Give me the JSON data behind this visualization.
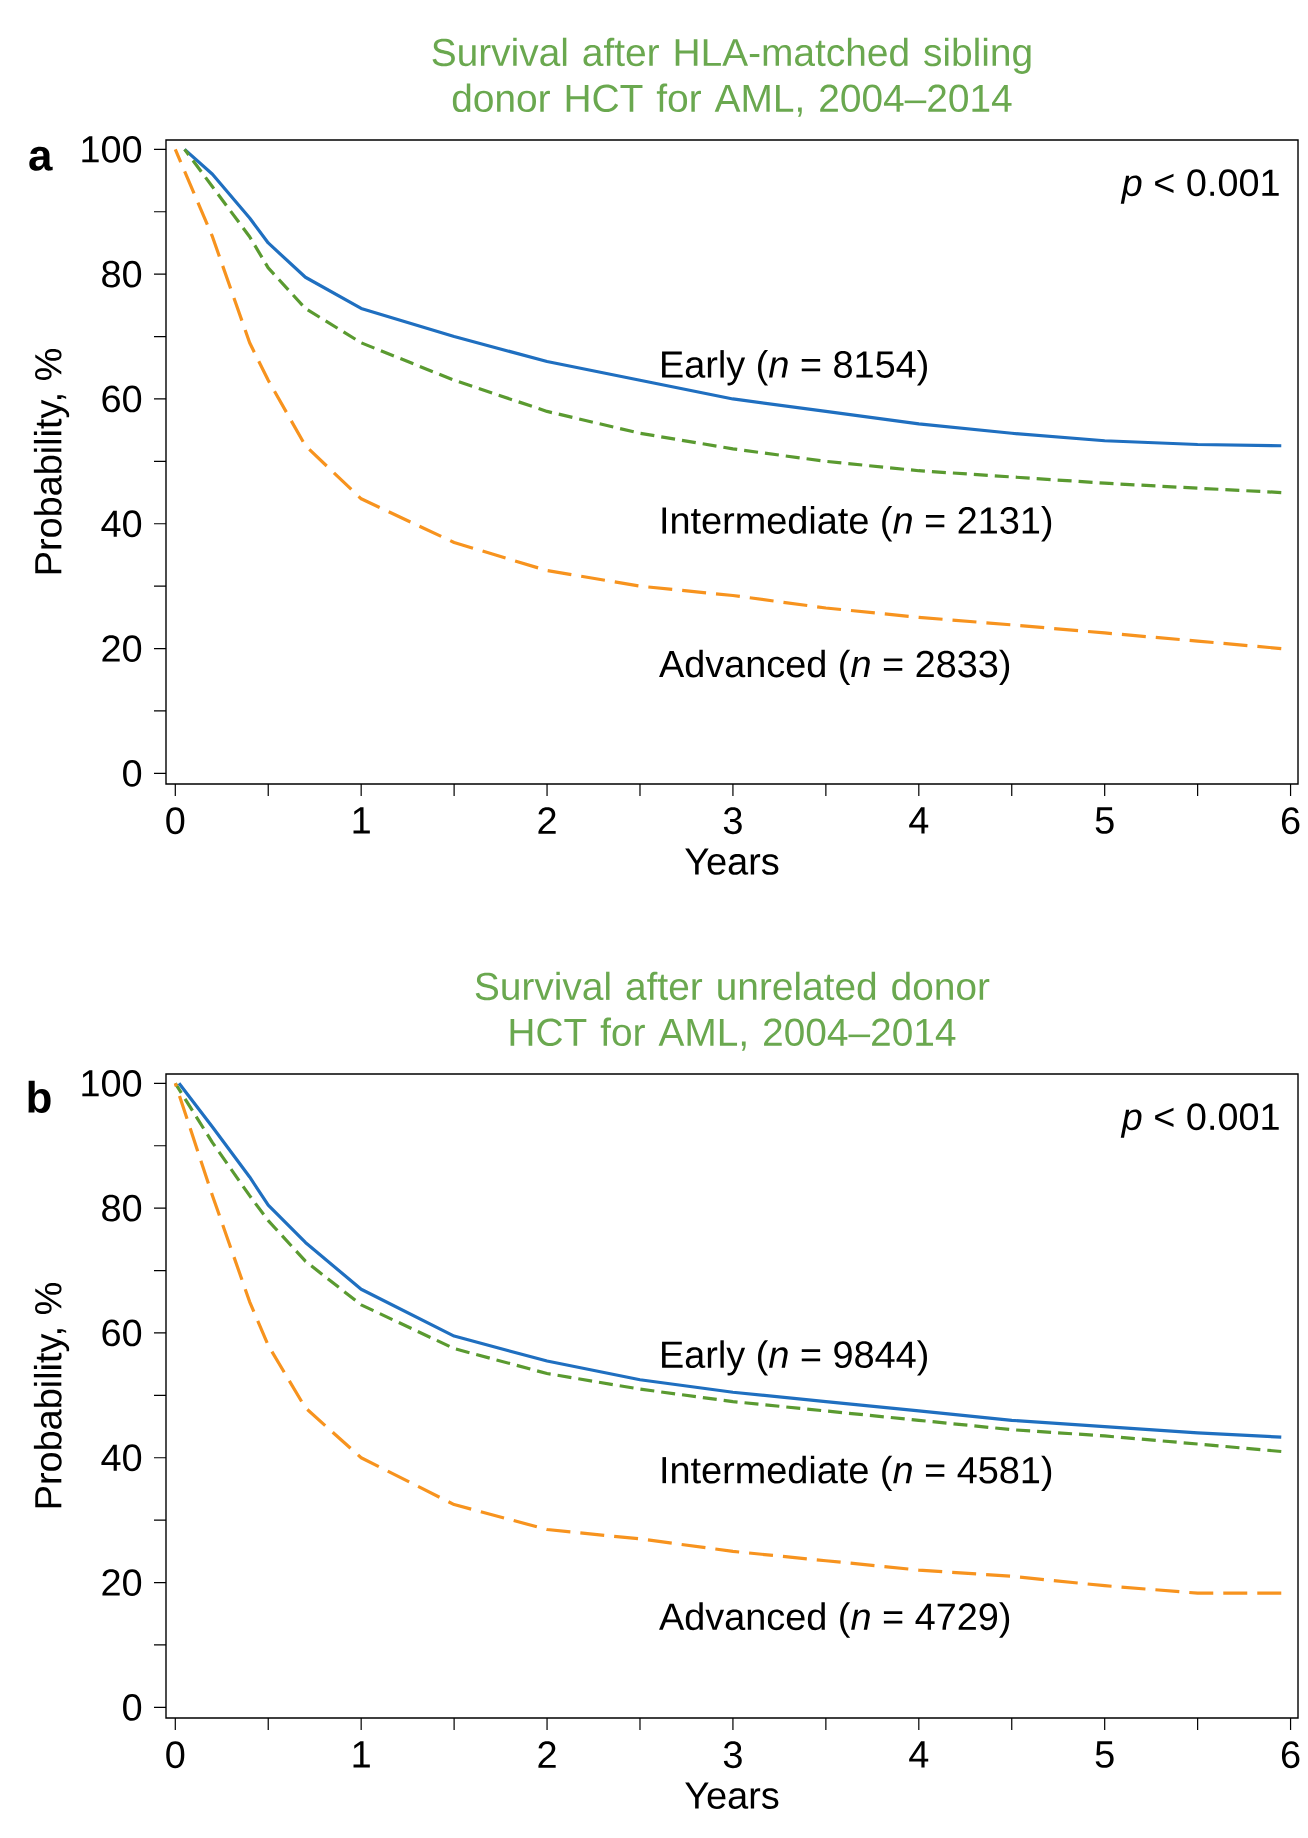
{
  "chart_data": [
    {
      "type": "line",
      "title": "Survival after HLA-matched sibling donor HCT for AML, 2004–2014",
      "xlabel": "Years",
      "ylabel": "Probability, %",
      "annotations": [
        "a",
        "*p* < 0.001"
      ],
      "xlim": [
        -0.05,
        6.04
      ],
      "ylim": [
        -1.7,
        101.5
      ],
      "xticks": [
        0,
        {
          "value": 0.5,
          "label": null
        },
        1,
        {
          "value": 1.5,
          "label": null
        },
        2,
        {
          "value": 2.5,
          "label": null
        },
        3,
        {
          "value": 3.5,
          "label": null
        },
        4,
        {
          "value": 4.5,
          "label": null
        },
        5,
        {
          "value": 5.5,
          "label": null
        },
        6
      ],
      "yticks": [
        0,
        {
          "value": 10,
          "label": null
        },
        20,
        {
          "value": 30,
          "label": null
        },
        40,
        {
          "value": 50,
          "label": null
        },
        60,
        {
          "value": 70,
          "label": null
        },
        80,
        {
          "value": 90,
          "label": null
        },
        100
      ],
      "legend": false,
      "marker": "none",
      "series": [
        {
          "name": "Early (*n* = 8154)",
          "color": "#1f6fc0",
          "line_style": "solid",
          "x": [
            0.05,
            0.2,
            0.4,
            0.5,
            0.7,
            1,
            1.5,
            2,
            2.5,
            3,
            3.5,
            4,
            4.5,
            5,
            5.5,
            5.95
          ],
          "values": [
            100,
            96,
            89,
            85,
            79.5,
            74.5,
            70,
            66,
            63,
            60,
            58,
            56,
            54.5,
            53.3,
            52.7,
            52.5
          ]
        },
        {
          "name": "Intermediate (*n* = 2131)",
          "color": "#5a9a30",
          "line_style": "dashed",
          "x": [
            0.05,
            0.2,
            0.4,
            0.5,
            0.7,
            1,
            1.5,
            2,
            2.5,
            3,
            3.5,
            4,
            4.5,
            5,
            5.5,
            5.95
          ],
          "values": [
            100,
            94,
            86,
            81,
            74.5,
            69,
            63,
            58,
            54.5,
            52,
            50,
            48.5,
            47.5,
            46.5,
            45.7,
            45
          ]
        },
        {
          "name": "Advanced (*n* = 2833)",
          "color": "#f7931e",
          "line_style": "dashed",
          "x": [
            0,
            0.2,
            0.4,
            0.5,
            0.7,
            1,
            1.5,
            2,
            2.5,
            3,
            3.5,
            4,
            4.5,
            5,
            5.5,
            5.95
          ],
          "values": [
            100,
            86,
            69,
            63,
            52.5,
            44,
            37,
            32.5,
            30,
            28.5,
            26.5,
            25,
            23.8,
            22.5,
            21.2,
            20
          ]
        }
      ]
    },
    {
      "type": "line",
      "title": "Survival after unrelated donor HCT for AML, 2004–2014",
      "xlabel": "Years",
      "ylabel": "Probability, %",
      "annotations": [
        "b",
        "*p* < 0.001"
      ],
      "xlim": [
        -0.05,
        6.04
      ],
      "ylim": [
        -1.7,
        101.5
      ],
      "xticks": [
        0,
        {
          "value": 0.5,
          "label": null
        },
        1,
        {
          "value": 1.5,
          "label": null
        },
        2,
        {
          "value": 2.5,
          "label": null
        },
        3,
        {
          "value": 3.5,
          "label": null
        },
        4,
        {
          "value": 4.5,
          "label": null
        },
        5,
        {
          "value": 5.5,
          "label": null
        },
        6
      ],
      "yticks": [
        0,
        {
          "value": 10,
          "label": null
        },
        20,
        {
          "value": 30,
          "label": null
        },
        40,
        {
          "value": 50,
          "label": null
        },
        60,
        {
          "value": 70,
          "label": null
        },
        80,
        {
          "value": 90,
          "label": null
        },
        100
      ],
      "legend": false,
      "marker": "none",
      "series": [
        {
          "name": "Early (*n* = 9844)",
          "color": "#1f6fc0",
          "line_style": "solid",
          "x": [
            0.02,
            0.2,
            0.4,
            0.5,
            0.7,
            1,
            1.5,
            2,
            2.5,
            3,
            3.5,
            4,
            4.5,
            5,
            5.5,
            5.95
          ],
          "values": [
            100,
            93,
            85,
            80.5,
            74.5,
            67,
            59.5,
            55.5,
            52.5,
            50.5,
            49,
            47.5,
            46,
            45,
            44,
            43.3
          ]
        },
        {
          "name": "Intermediate (*n* = 4581)",
          "color": "#5a9a30",
          "line_style": "dashed",
          "x": [
            0,
            0.2,
            0.4,
            0.5,
            0.7,
            1,
            1.5,
            2,
            2.5,
            3,
            3.5,
            4,
            4.5,
            5,
            5.5,
            5.95
          ],
          "values": [
            100,
            90.5,
            82,
            78,
            71.5,
            64.5,
            57.5,
            53.5,
            51,
            49,
            47.5,
            46,
            44.5,
            43.5,
            42.2,
            41
          ]
        },
        {
          "name": "Advanced (*n* = 4729)",
          "color": "#f7931e",
          "line_style": "dashed",
          "x": [
            0,
            0.2,
            0.4,
            0.5,
            0.7,
            1,
            1.5,
            2,
            2.5,
            3,
            3.5,
            4,
            4.5,
            5,
            5.5,
            5.95
          ],
          "values": [
            100,
            82,
            65,
            58,
            48,
            40,
            32.5,
            28.5,
            27,
            25,
            23.5,
            22,
            21,
            19.5,
            18.3,
            18.3
          ]
        }
      ]
    }
  ]
}
